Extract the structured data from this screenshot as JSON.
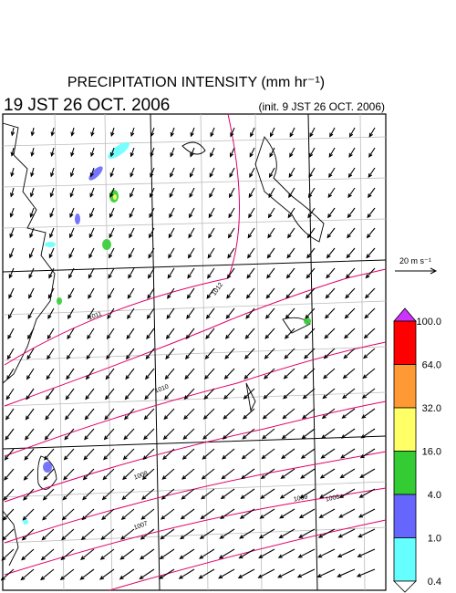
{
  "header": {
    "title": "PRECIPITATION INTENSITY (mm hr⁻¹)",
    "valid_time": "19 JST 26 OCT. 2006",
    "init_time": "(init. 9 JST 26 OCT. 2006)"
  },
  "wind_scale": {
    "label": "20 m s⁻¹"
  },
  "colorbar": {
    "labels": [
      "100.0",
      "64.0",
      "32.0",
      "16.0",
      "4.0",
      "1.0",
      "0.4"
    ],
    "colors": [
      "#cc33ff",
      "#ff0000",
      "#ff9933",
      "#ffff66",
      "#33cc33",
      "#6666ff",
      "#66ffff",
      "#ffffff"
    ]
  },
  "isobars": {
    "labels": [
      "1012",
      "1011",
      "1010",
      "1009",
      "1008",
      "1007",
      "1006"
    ],
    "color": "#e0006a"
  }
}
